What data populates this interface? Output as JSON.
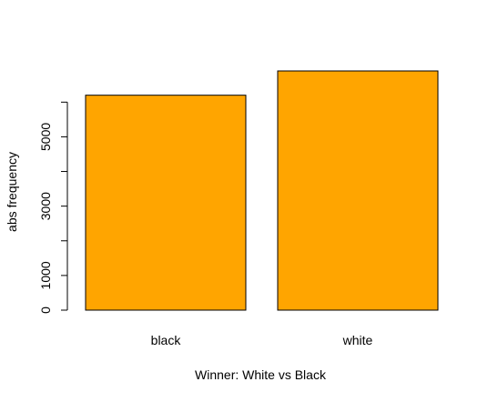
{
  "chart_data": {
    "type": "bar",
    "categories": [
      "black",
      "white"
    ],
    "values": [
      6200,
      6900
    ],
    "xlabel": "Winner: White vs Black",
    "ylabel": "abs frequency",
    "ylim": [
      0,
      6900
    ],
    "yticks": [
      0,
      1000,
      2000,
      3000,
      4000,
      5000,
      6000
    ],
    "ytick_labels": [
      "0",
      "1000",
      "",
      "3000",
      "",
      "5000",
      ""
    ],
    "bar_color": "#FFA500",
    "grid": false,
    "legend": "none"
  }
}
